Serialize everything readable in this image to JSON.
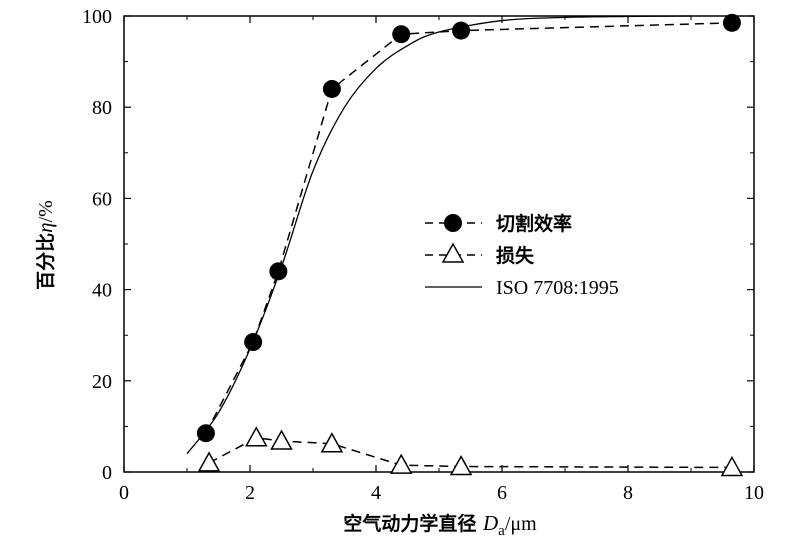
{
  "chart_data": {
    "type": "line",
    "xlabel": "空气动力学直径 Da/μm",
    "xlabel_main": "空气动力学直径 ",
    "xlabel_var": "D",
    "xlabel_sub": "a",
    "xlabel_unit": "/μm",
    "ylabel": "百分比η/%",
    "ylabel_main": "百分比",
    "ylabel_var": "η",
    "ylabel_unit": "/%",
    "xlim": [
      0,
      10
    ],
    "ylim": [
      0,
      100
    ],
    "xticks": [
      0,
      2,
      4,
      6,
      8,
      10
    ],
    "yticks": [
      0,
      20,
      40,
      60,
      80,
      100
    ],
    "grid": false,
    "legend_position": "center-right",
    "series": [
      {
        "name": "切割效率",
        "style": "dashed",
        "marker": "filled-circle",
        "x": [
          1.3,
          2.05,
          2.45,
          3.3,
          4.4,
          5.35,
          9.65
        ],
        "y": [
          8.5,
          28.5,
          44,
          84,
          96,
          96.8,
          98.5
        ]
      },
      {
        "name": "损失",
        "style": "dashed",
        "marker": "open-triangle",
        "x": [
          1.35,
          2.1,
          2.5,
          3.3,
          4.4,
          5.35,
          9.65
        ],
        "y": [
          2,
          7.5,
          6.8,
          6.2,
          1.5,
          1.2,
          1.0
        ]
      },
      {
        "name": "ISO 7708:1995",
        "style": "solid",
        "marker": "none",
        "x": [
          1.0,
          1.5,
          2.0,
          2.5,
          3.0,
          3.5,
          4.0,
          4.5,
          5.0,
          6.0,
          7.0,
          8.0,
          9.0
        ],
        "y": [
          4,
          13,
          27,
          45,
          66,
          80,
          88.5,
          93.5,
          96.5,
          99,
          99.7,
          99.9,
          100
        ]
      }
    ]
  }
}
